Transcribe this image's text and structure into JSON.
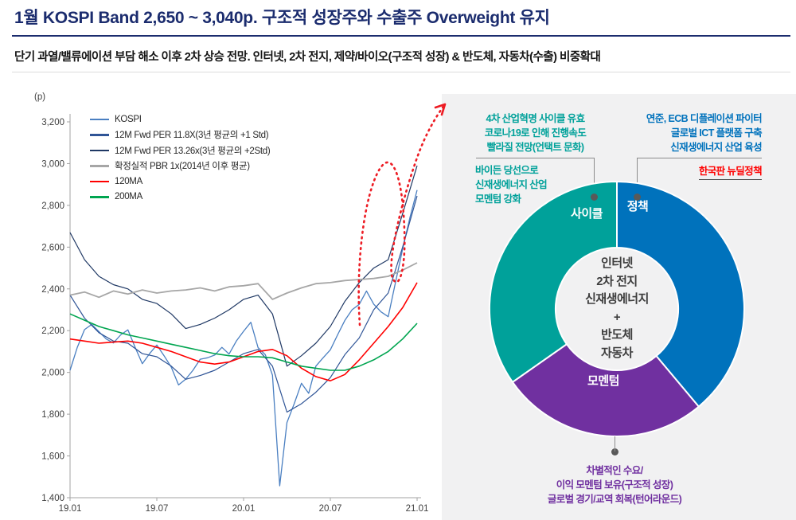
{
  "header": {
    "title": "1월 KOSPI Band 2,650 ~ 3,040p. 구조적 성장주와 수출주 Overweight 유지",
    "subtitle": "단기 과열/밸류에이션 부담 해소 이후 2차 상승 전망. 인터넷, 2차 전지, 제약/바이오(구조적 성장) & 반도체, 자동차(수출) 비중확대"
  },
  "chart_data": [
    {
      "type": "line",
      "unit_label": "(p)",
      "x_ticks": [
        "19.01",
        "19.07",
        "20.01",
        "20.07",
        "21.01"
      ],
      "y_ticks": [
        "3,200",
        "3,000",
        "2,800",
        "2,600",
        "2,400",
        "2,200",
        "2,000",
        "1,800",
        "1,600",
        "1,400"
      ],
      "ylim": [
        1400,
        3200
      ],
      "x_range_months": [
        0,
        24
      ],
      "grid": false,
      "legend_position": "top-left-inside",
      "series": [
        {
          "name": "KOSPI",
          "color": "#4a7fc1",
          "width": 1.3,
          "values": [
            2010,
            2120,
            2205,
            2230,
            2195,
            2160,
            2141,
            2180,
            2204,
            2120,
            2042,
            2090,
            2131,
            2080,
            2025,
            1940,
            1968,
            2010,
            2063,
            2070,
            2083,
            2120,
            2088,
            2150,
            2197,
            2240,
            2119,
            2085,
            1987,
            1457,
            1760,
            1850,
            1948,
            1900,
            2030,
            2070,
            2108,
            2180,
            2249,
            2300,
            2326,
            2390,
            2327,
            2290,
            2267,
            2430,
            2591,
            2740,
            2873
          ]
        },
        {
          "name": "12M Fwd PER 11.8X(3년 평균의 +1 Std)",
          "color": "#2f5496",
          "width": 1.2,
          "values": [
            2370,
            2260,
            2190,
            2150,
            2140,
            2090,
            2075,
            2030,
            1967,
            1985,
            2010,
            2050,
            2090,
            2110,
            2030,
            1810,
            1850,
            1905,
            1975,
            2085,
            2165,
            2300,
            2380,
            2600,
            2845
          ]
        },
        {
          "name": "12M Fwd PER 13.26x(3년 평균의 +2Std)",
          "color": "#1f3864",
          "width": 1.2,
          "values": [
            2670,
            2540,
            2460,
            2420,
            2400,
            2350,
            2330,
            2280,
            2210,
            2230,
            2260,
            2300,
            2350,
            2370,
            2280,
            2030,
            2080,
            2140,
            2220,
            2340,
            2430,
            2500,
            2540,
            2760,
            2990
          ]
        },
        {
          "name": "확정실적 PBR 1x(2014년 이후 평균)",
          "color": "#a6a6a6",
          "width": 1.8,
          "values": [
            2370,
            2385,
            2360,
            2390,
            2375,
            2395,
            2380,
            2390,
            2395,
            2405,
            2390,
            2410,
            2415,
            2425,
            2350,
            2380,
            2405,
            2425,
            2430,
            2440,
            2445,
            2450,
            2460,
            2490,
            2525
          ]
        },
        {
          "name": "120MA",
          "color": "#ff0000",
          "width": 1.6,
          "values": [
            2160,
            2150,
            2140,
            2145,
            2150,
            2140,
            2120,
            2100,
            2075,
            2050,
            2040,
            2050,
            2075,
            2100,
            2110,
            2080,
            2020,
            1980,
            1960,
            1990,
            2060,
            2140,
            2220,
            2310,
            2430
          ]
        },
        {
          "name": "200MA",
          "color": "#00a550",
          "width": 1.6,
          "values": [
            2280,
            2250,
            2220,
            2200,
            2180,
            2165,
            2150,
            2135,
            2120,
            2105,
            2090,
            2080,
            2075,
            2075,
            2070,
            2050,
            2030,
            2020,
            2010,
            2010,
            2030,
            2060,
            2100,
            2160,
            2235
          ]
        }
      ],
      "annotation": {
        "name": "projected-band-dotted-arrow",
        "color": "#ed1c24",
        "style": "dotted"
      }
    },
    {
      "type": "pie",
      "variant": "donut",
      "segments": [
        {
          "label": "정책",
          "color": "#0072bc",
          "start_deg": 0,
          "end_deg": 140,
          "value_pct": 38.9
        },
        {
          "label": "모멘텀",
          "color": "#7030a0",
          "start_deg": 140,
          "end_deg": 235,
          "value_pct": 26.4
        },
        {
          "label": "사이클",
          "color": "#00a19a",
          "start_deg": 235,
          "end_deg": 360,
          "value_pct": 34.7
        }
      ],
      "center_text": [
        "인터넷",
        "2차 전지",
        "신재생에너지",
        "+",
        "반도체",
        "자동차"
      ]
    }
  ],
  "right_panel": {
    "cycle": {
      "color": "#00a19a",
      "lines": [
        "4차 산업혁명 사이클 유효",
        "코로나19로 인해 진행속도",
        "빨라질 전망(언택트 문화)"
      ]
    },
    "cycle2": {
      "color": "#00a19a",
      "lines": [
        "바이든 당선으로",
        "신재생에너지 산업",
        "모멘텀 강화"
      ]
    },
    "policy": {
      "color": "#0072bc",
      "lines": [
        "연준, ECB 디플레이션 파이터",
        "글로벌 ICT 플랫폼 구축",
        "신재생에너지 산업 육성"
      ]
    },
    "newdeal": {
      "color": "#ff0000",
      "text": "한국판 뉴딜정책"
    },
    "momentum": {
      "color": "#7030a0",
      "lines": [
        "차별적인 수요/",
        "이익 모멘텀 보유(구조적 성장)",
        "글로벌 경기/교역 회복(턴어라운드)"
      ]
    }
  }
}
